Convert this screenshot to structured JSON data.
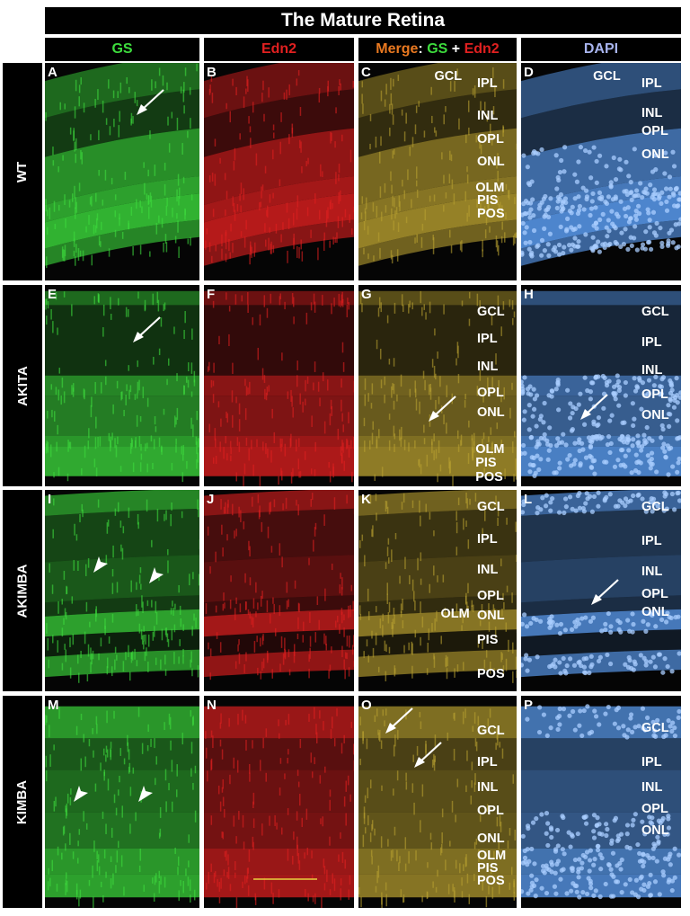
{
  "figure": {
    "title": "The Mature Retina",
    "columns": [
      {
        "parts": [
          {
            "text": "GS",
            "color": "#3ddc3d"
          }
        ]
      },
      {
        "parts": [
          {
            "text": "Edn2",
            "color": "#e02020"
          }
        ]
      },
      {
        "parts": [
          {
            "text": "Merge",
            "color": "#e87820"
          },
          {
            "text": ": ",
            "color": "#ffffff"
          },
          {
            "text": "GS",
            "color": "#3ddc3d"
          },
          {
            "text": " + ",
            "color": "#ffffff"
          },
          {
            "text": "Edn2",
            "color": "#e02020"
          }
        ]
      },
      {
        "parts": [
          {
            "text": "DAPI",
            "color": "#a8b4ee"
          }
        ]
      }
    ],
    "rows": [
      "WT",
      "AKITA",
      "AKIMBA",
      "KIMBA"
    ],
    "panel_letters": [
      [
        "A",
        "B",
        "C",
        "D"
      ],
      [
        "E",
        "F",
        "G",
        "H"
      ],
      [
        "I",
        "J",
        "K",
        "L"
      ],
      [
        "M",
        "N",
        "O",
        "P"
      ]
    ],
    "layer_labels": {
      "C": [
        "GCL",
        "IPL",
        "INL",
        "OPL",
        "ONL",
        "OLM",
        "PIS",
        "POS"
      ],
      "D": [
        "GCL",
        "IPL",
        "INL",
        "OPL",
        "ONL"
      ],
      "G": [
        "GCL",
        "IPL",
        "INL",
        "OPL",
        "ONL",
        "OLM",
        "PIS",
        "POS"
      ],
      "H": [
        "GCL",
        "IPL",
        "INL",
        "OPL",
        "ONL"
      ],
      "K": [
        "GCL",
        "IPL",
        "INL",
        "OPL",
        "ONL",
        "OLM",
        "PIS",
        "POS"
      ],
      "L": [
        "GCL",
        "IPL",
        "INL",
        "OPL",
        "ONL"
      ],
      "O": [
        "GCL",
        "IPL",
        "INL",
        "OPL",
        "ONL",
        "OLM",
        "PIS",
        "POS"
      ],
      "P": [
        "GCL",
        "IPL",
        "INL",
        "OPL",
        "ONL"
      ]
    },
    "colors": {
      "gs": "#3ddc3d",
      "edn2": "#e02020",
      "merge": "#b8a030",
      "dapi": "#5a9cf0"
    }
  }
}
